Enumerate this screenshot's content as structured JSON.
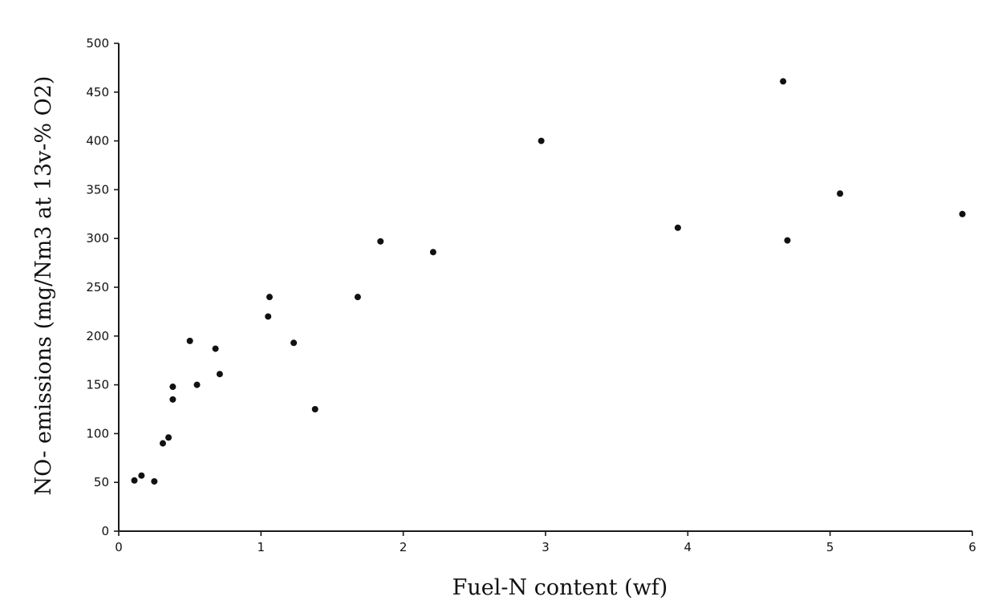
{
  "chart_data": {
    "type": "scatter",
    "title": "",
    "xlabel": "Fuel-N content (wf)",
    "ylabel": "NO- emissions (mg/Nm3 at 13v-% O2)",
    "xlim": [
      0,
      6
    ],
    "ylim": [
      0,
      500
    ],
    "x_ticks": [
      0,
      1,
      2,
      3,
      4,
      5,
      6
    ],
    "y_ticks": [
      0,
      50,
      100,
      150,
      200,
      250,
      300,
      350,
      400,
      450,
      500
    ],
    "grid": false,
    "legend": "none",
    "marker_color": "#111111",
    "points": [
      {
        "x": 0.11,
        "y": 52
      },
      {
        "x": 0.16,
        "y": 57
      },
      {
        "x": 0.25,
        "y": 51
      },
      {
        "x": 0.31,
        "y": 90
      },
      {
        "x": 0.35,
        "y": 96
      },
      {
        "x": 0.38,
        "y": 148
      },
      {
        "x": 0.38,
        "y": 135
      },
      {
        "x": 0.5,
        "y": 195
      },
      {
        "x": 0.55,
        "y": 150
      },
      {
        "x": 0.68,
        "y": 187
      },
      {
        "x": 0.71,
        "y": 161
      },
      {
        "x": 1.05,
        "y": 220
      },
      {
        "x": 1.06,
        "y": 240
      },
      {
        "x": 1.23,
        "y": 193
      },
      {
        "x": 1.38,
        "y": 125
      },
      {
        "x": 1.68,
        "y": 240
      },
      {
        "x": 1.84,
        "y": 297
      },
      {
        "x": 2.21,
        "y": 286
      },
      {
        "x": 2.97,
        "y": 400
      },
      {
        "x": 3.93,
        "y": 311
      },
      {
        "x": 4.67,
        "y": 461
      },
      {
        "x": 4.7,
        "y": 298
      },
      {
        "x": 5.07,
        "y": 346
      },
      {
        "x": 5.93,
        "y": 325
      }
    ]
  }
}
